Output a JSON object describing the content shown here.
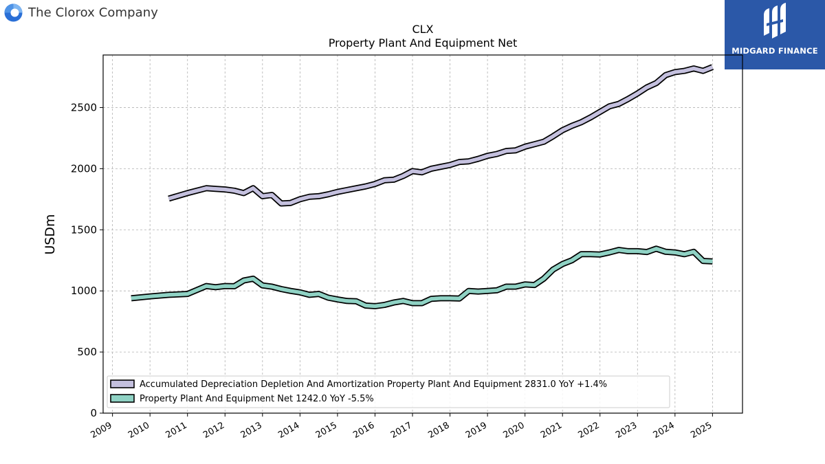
{
  "header": {
    "company_name": "The Clorox Company",
    "brand_name": "MIDGARD FINANCE"
  },
  "colors": {
    "series_1": "#c4c0de",
    "series_2": "#8fd2c4",
    "outline": "#000000",
    "grid": "#b0b0b0",
    "brand_bg": "#2b58a8"
  },
  "chart_data": {
    "type": "line",
    "title": "CLX",
    "subtitle": "Property Plant And Equipment Net",
    "xlabel": "",
    "ylabel": "USDm",
    "ylim": [
      0,
      2930
    ],
    "xlim": [
      2008.75,
      2025.8
    ],
    "yticks": [
      0,
      500,
      1000,
      1500,
      2000,
      2500
    ],
    "xticks": [
      "2009",
      "2010",
      "2011",
      "2012",
      "2013",
      "2014",
      "2015",
      "2016",
      "2017",
      "2018",
      "2019",
      "2020",
      "2021",
      "2022",
      "2023",
      "2024",
      "2025"
    ],
    "grid": true,
    "legend_position": "lower-left",
    "series": [
      {
        "name": "Accumulated Depreciation Depletion And Amortization Property Plant And Equipment",
        "legend_label": "Accumulated Depreciation Depletion And Amortization Property Plant And Equipment  2831.0 YoY +1.4%",
        "color": "#c4c0de",
        "x": [
          2010.5,
          2011.0,
          2011.5,
          2011.75,
          2012.0,
          2012.25,
          2012.5,
          2012.75,
          2013.0,
          2013.25,
          2013.5,
          2013.75,
          2014.0,
          2014.25,
          2014.5,
          2014.75,
          2015.0,
          2015.25,
          2015.5,
          2015.75,
          2016.0,
          2016.25,
          2016.5,
          2016.75,
          2017.0,
          2017.25,
          2017.5,
          2017.75,
          2018.0,
          2018.25,
          2018.5,
          2018.75,
          2019.0,
          2019.25,
          2019.5,
          2019.75,
          2020.0,
          2020.25,
          2020.5,
          2020.75,
          2021.0,
          2021.25,
          2021.5,
          2021.75,
          2022.0,
          2022.25,
          2022.5,
          2022.75,
          2023.0,
          2023.25,
          2023.5,
          2023.75,
          2024.0,
          2024.25,
          2024.5,
          2024.75,
          2025.0
        ],
        "values": [
          1755,
          1800,
          1840,
          1835,
          1830,
          1820,
          1800,
          1840,
          1775,
          1785,
          1715,
          1720,
          1750,
          1770,
          1775,
          1790,
          1810,
          1825,
          1840,
          1855,
          1875,
          1905,
          1910,
          1940,
          1980,
          1970,
          2000,
          2015,
          2030,
          2055,
          2060,
          2080,
          2105,
          2120,
          2145,
          2150,
          2180,
          2200,
          2220,
          2265,
          2315,
          2350,
          2380,
          2420,
          2465,
          2510,
          2530,
          2570,
          2615,
          2665,
          2700,
          2765,
          2790,
          2800,
          2820,
          2800,
          2831
        ]
      },
      {
        "name": "Property Plant And Equipment Net",
        "legend_label": "Property Plant And Equipment Net  1242.0 YoY -5.5%",
        "color": "#8fd2c4",
        "x": [
          2009.5,
          2010.0,
          2010.5,
          2011.0,
          2011.5,
          2011.75,
          2012.0,
          2012.25,
          2012.5,
          2012.75,
          2013.0,
          2013.25,
          2013.5,
          2013.75,
          2014.0,
          2014.25,
          2014.5,
          2014.75,
          2015.0,
          2015.25,
          2015.5,
          2015.75,
          2016.0,
          2016.25,
          2016.5,
          2016.75,
          2017.0,
          2017.25,
          2017.5,
          2017.75,
          2018.0,
          2018.25,
          2018.5,
          2018.75,
          2019.0,
          2019.25,
          2019.5,
          2019.75,
          2020.0,
          2020.25,
          2020.5,
          2020.75,
          2021.0,
          2021.25,
          2021.5,
          2021.75,
          2022.0,
          2022.25,
          2022.5,
          2022.75,
          2023.0,
          2023.25,
          2023.5,
          2023.75,
          2024.0,
          2024.25,
          2024.5,
          2024.75,
          2025.0
        ],
        "values": [
          940,
          955,
          968,
          975,
          1040,
          1030,
          1040,
          1038,
          1085,
          1100,
          1045,
          1035,
          1015,
          1000,
          988,
          968,
          975,
          945,
          930,
          918,
          915,
          880,
          875,
          885,
          905,
          918,
          900,
          900,
          935,
          940,
          940,
          938,
          1000,
          995,
          1000,
          1005,
          1035,
          1035,
          1053,
          1048,
          1100,
          1175,
          1220,
          1250,
          1300,
          1300,
          1298,
          1315,
          1335,
          1325,
          1325,
          1318,
          1345,
          1320,
          1315,
          1300,
          1320,
          1245,
          1242
        ]
      }
    ]
  }
}
